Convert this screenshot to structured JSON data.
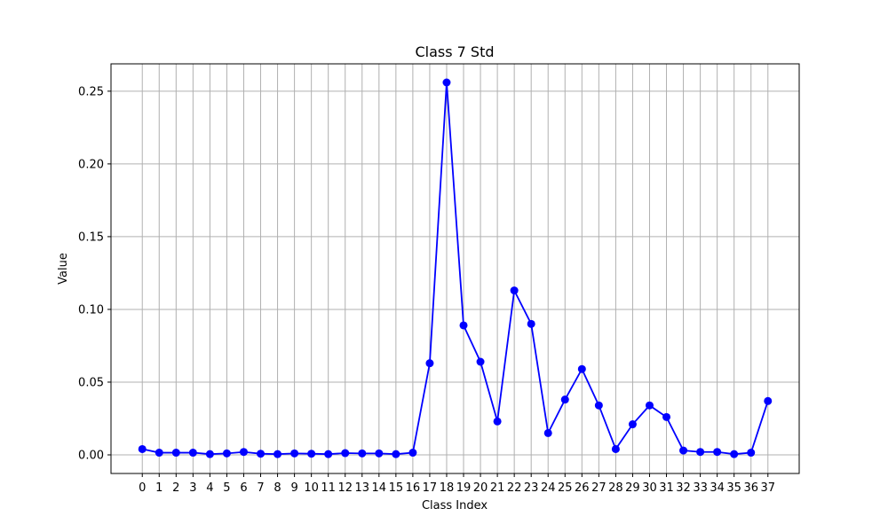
{
  "chart_data": {
    "type": "line",
    "title": "Class 7 Std",
    "xlabel": "Class Index",
    "ylabel": "Value",
    "x": [
      0,
      1,
      2,
      3,
      4,
      5,
      6,
      7,
      8,
      9,
      10,
      11,
      12,
      13,
      14,
      15,
      16,
      17,
      18,
      19,
      20,
      21,
      22,
      23,
      24,
      25,
      26,
      27,
      28,
      29,
      30,
      31,
      32,
      33,
      34,
      35,
      36,
      37
    ],
    "series": [
      {
        "values": [
          0.004,
          0.0015,
          0.0015,
          0.0015,
          0.0005,
          0.001,
          0.002,
          0.0008,
          0.0005,
          0.001,
          0.0008,
          0.0005,
          0.0012,
          0.001,
          0.001,
          0.0005,
          0.0015,
          0.063,
          0.256,
          0.089,
          0.064,
          0.023,
          0.113,
          0.09,
          0.015,
          0.038,
          0.059,
          0.034,
          0.004,
          0.021,
          0.034,
          0.026,
          0.003,
          0.002,
          0.002,
          0.0005,
          0.0015,
          0.037
        ],
        "color": "#0000ff"
      }
    ],
    "xlim": [
      -1.85,
      38.85
    ],
    "ylim": [
      -0.0128,
      0.2688
    ],
    "yticks": [
      0.0,
      0.05,
      0.1,
      0.15,
      0.2,
      0.25
    ],
    "ytick_labels": [
      "0.00",
      "0.05",
      "0.10",
      "0.15",
      "0.20",
      "0.25"
    ],
    "grid": true
  }
}
